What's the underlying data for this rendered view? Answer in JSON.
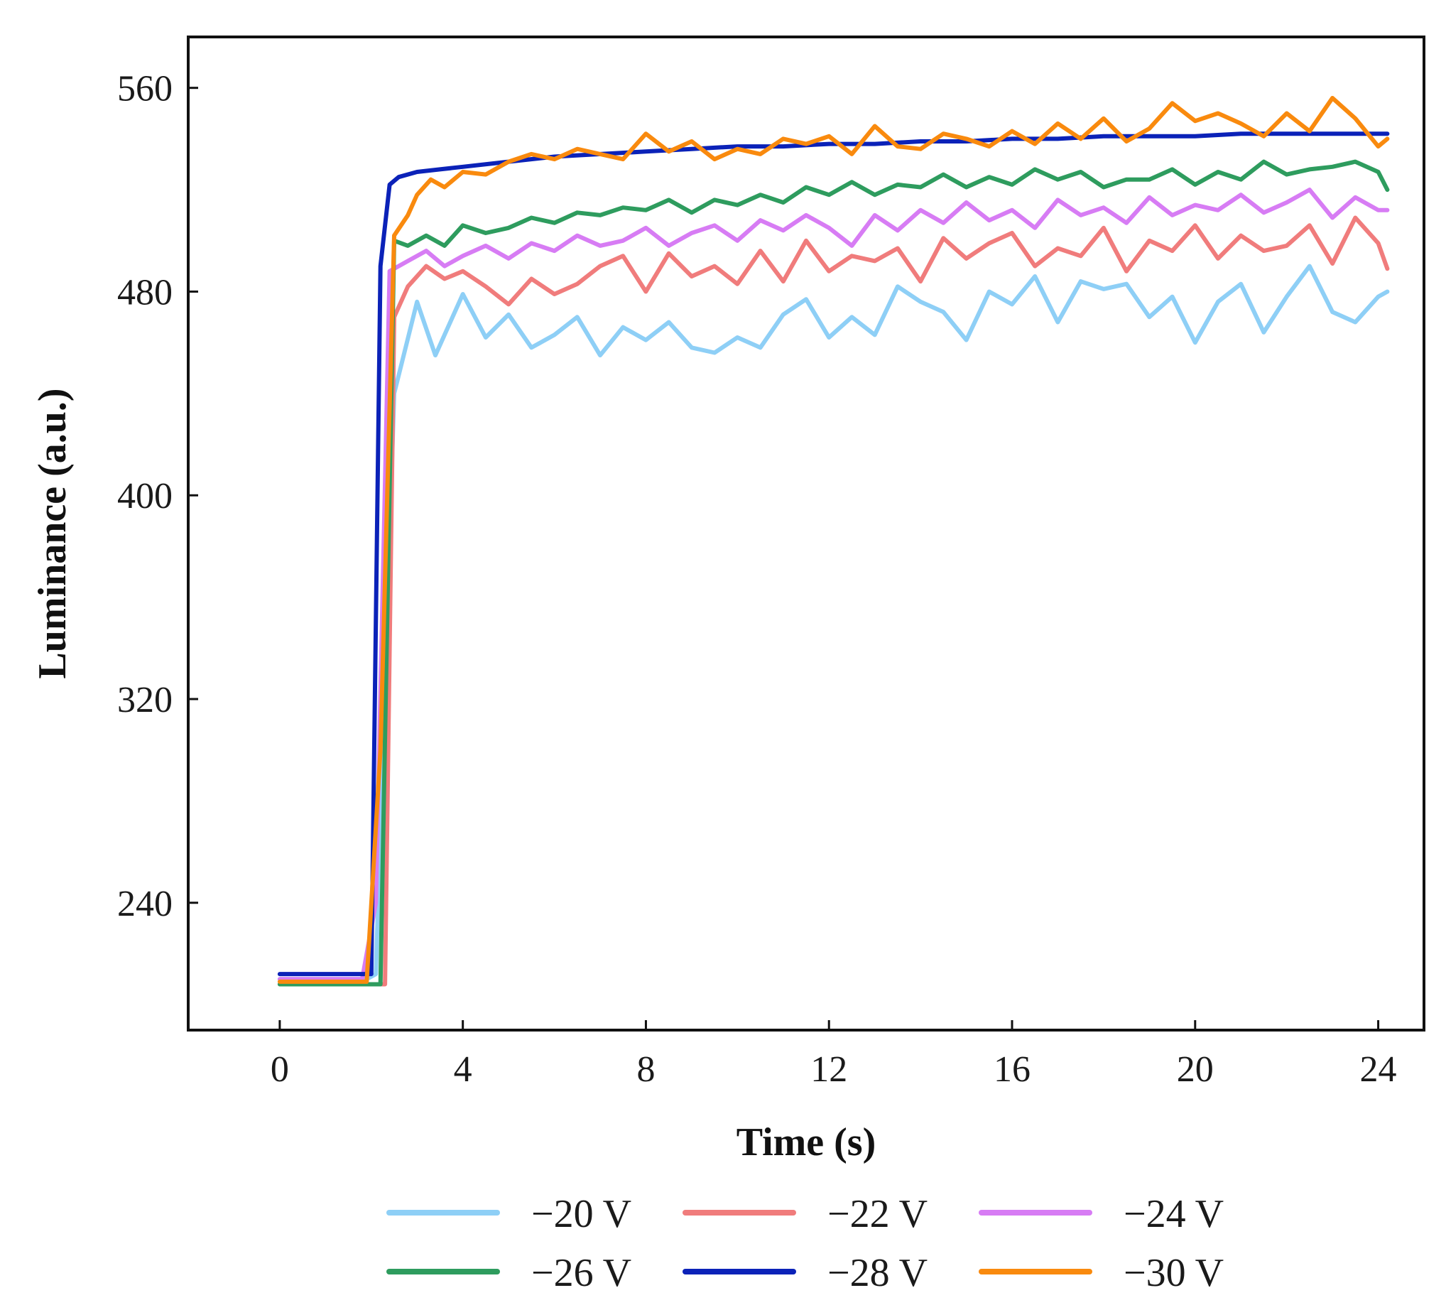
{
  "chart_data": {
    "type": "line",
    "title": "",
    "xlabel": "Time (s)",
    "ylabel": "Luminance (a.u.)",
    "xlim": [
      -2,
      25
    ],
    "ylim": [
      190,
      580
    ],
    "xticks": [
      0,
      4,
      8,
      12,
      16,
      20,
      24
    ],
    "xtick_labels": [
      "0",
      "4",
      "8",
      "12",
      "16",
      "20",
      "24"
    ],
    "yticks": [
      240,
      320,
      400,
      480,
      560
    ],
    "ytick_labels": [
      "240",
      "320",
      "400",
      "480",
      "560"
    ],
    "grid": false,
    "legend_position": "bottom",
    "series": [
      {
        "name": "−20 V",
        "color": "#8ecff6",
        "x": [
          0,
          1.9,
          2.1,
          2.5,
          3.0,
          3.4,
          4.0,
          4.5,
          5.0,
          5.5,
          6.0,
          6.5,
          7.0,
          7.5,
          8.0,
          8.5,
          9.0,
          9.5,
          10.0,
          10.5,
          11.0,
          11.5,
          12.0,
          12.5,
          13.0,
          13.5,
          14.0,
          14.5,
          15.0,
          15.5,
          16.0,
          16.5,
          17.0,
          17.5,
          18.0,
          18.5,
          19.0,
          19.5,
          20.0,
          20.5,
          21.0,
          21.5,
          22.0,
          22.5,
          23.0,
          23.5,
          24.0,
          24.2
        ],
        "values": [
          210,
          210,
          212,
          440,
          476,
          455,
          479,
          462,
          471,
          458,
          463,
          470,
          455,
          466,
          461,
          468,
          458,
          456,
          462,
          458,
          471,
          477,
          462,
          470,
          463,
          482,
          476,
          472,
          461,
          480,
          475,
          486,
          468,
          484,
          481,
          483,
          470,
          478,
          460,
          476,
          483,
          464,
          478,
          490,
          472,
          468,
          478,
          480
        ]
      },
      {
        "name": "−22 V",
        "color": "#f07c7c",
        "x": [
          0,
          2.3,
          2.5,
          2.8,
          3.2,
          3.6,
          4.0,
          4.5,
          5.0,
          5.5,
          6.0,
          6.5,
          7.0,
          7.5,
          8.0,
          8.5,
          9.0,
          9.5,
          10.0,
          10.5,
          11.0,
          11.5,
          12.0,
          12.5,
          13.0,
          13.5,
          14.0,
          14.5,
          15.0,
          15.5,
          16.0,
          16.5,
          17.0,
          17.5,
          18.0,
          18.5,
          19.0,
          19.5,
          20.0,
          20.5,
          21.0,
          21.5,
          22.0,
          22.5,
          23.0,
          23.5,
          24.0,
          24.2
        ],
        "values": [
          208,
          208,
          470,
          482,
          490,
          485,
          488,
          482,
          475,
          485,
          479,
          483,
          490,
          494,
          480,
          495,
          486,
          490,
          483,
          496,
          484,
          500,
          488,
          494,
          492,
          497,
          484,
          501,
          493,
          499,
          503,
          490,
          497,
          494,
          505,
          488,
          500,
          496,
          506,
          493,
          502,
          496,
          498,
          506,
          491,
          509,
          499,
          489
        ]
      },
      {
        "name": "−24 V",
        "color": "#d77cf4",
        "x": [
          0,
          1.8,
          2.1,
          2.4,
          2.8,
          3.2,
          3.6,
          4.0,
          4.5,
          5.0,
          5.5,
          6.0,
          6.5,
          7.0,
          7.5,
          8.0,
          8.5,
          9.0,
          9.5,
          10.0,
          10.5,
          11.0,
          11.5,
          12.0,
          12.5,
          13.0,
          13.5,
          14.0,
          14.5,
          15.0,
          15.5,
          16.0,
          16.5,
          17.0,
          17.5,
          18.0,
          18.5,
          19.0,
          19.5,
          20.0,
          20.5,
          21.0,
          21.5,
          22.0,
          22.5,
          23.0,
          23.5,
          24.0,
          24.2
        ],
        "values": [
          210,
          210,
          240,
          488,
          492,
          496,
          490,
          494,
          498,
          493,
          499,
          496,
          502,
          498,
          500,
          505,
          498,
          503,
          506,
          500,
          508,
          504,
          510,
          505,
          498,
          510,
          504,
          512,
          507,
          515,
          508,
          512,
          505,
          516,
          510,
          513,
          507,
          517,
          510,
          514,
          512,
          518,
          511,
          515,
          520,
          509,
          517,
          512,
          512
        ]
      },
      {
        "name": "−26 V",
        "color": "#2e9c5e",
        "x": [
          0,
          2.2,
          2.5,
          2.8,
          3.2,
          3.6,
          4.0,
          4.5,
          5.0,
          5.5,
          6.0,
          6.5,
          7.0,
          7.5,
          8.0,
          8.5,
          9.0,
          9.5,
          10.0,
          10.5,
          11.0,
          11.5,
          12.0,
          12.5,
          13.0,
          13.5,
          14.0,
          14.5,
          15.0,
          15.5,
          16.0,
          16.5,
          17.0,
          17.5,
          18.0,
          18.5,
          19.0,
          19.5,
          20.0,
          20.5,
          21.0,
          21.5,
          22.0,
          22.5,
          23.0,
          23.5,
          24.0,
          24.2
        ],
        "values": [
          208,
          208,
          500,
          498,
          502,
          498,
          506,
          503,
          505,
          509,
          507,
          511,
          510,
          513,
          512,
          516,
          511,
          516,
          514,
          518,
          515,
          521,
          518,
          523,
          518,
          522,
          521,
          526,
          521,
          525,
          522,
          528,
          524,
          527,
          521,
          524,
          524,
          528,
          522,
          527,
          524,
          531,
          526,
          528,
          529,
          531,
          527,
          520
        ]
      },
      {
        "name": "−28 V",
        "color": "#0b22b8",
        "x": [
          0,
          2.0,
          2.2,
          2.4,
          2.6,
          3.0,
          3.5,
          4.0,
          5.0,
          6.0,
          7.0,
          8.0,
          9.0,
          10.0,
          11.0,
          12.0,
          13.0,
          14.0,
          15.0,
          16.0,
          17.0,
          18.0,
          19.0,
          20.0,
          21.0,
          22.0,
          23.0,
          24.0,
          24.2
        ],
        "values": [
          212,
          212,
          490,
          522,
          525,
          527,
          528,
          529,
          531,
          533,
          534,
          535,
          536,
          537,
          537,
          538,
          538,
          539,
          539,
          540,
          540,
          541,
          541,
          541,
          542,
          542,
          542,
          542,
          542
        ]
      },
      {
        "name": "−30 V",
        "color": "#f98a0e",
        "x": [
          0,
          1.9,
          2.2,
          2.5,
          2.8,
          3.0,
          3.3,
          3.6,
          4.0,
          4.5,
          5.0,
          5.5,
          6.0,
          6.5,
          7.0,
          7.5,
          8.0,
          8.5,
          9.0,
          9.5,
          10.0,
          10.5,
          11.0,
          11.5,
          12.0,
          12.5,
          13.0,
          13.5,
          14.0,
          14.5,
          15.0,
          15.5,
          16.0,
          16.5,
          17.0,
          17.5,
          18.0,
          18.5,
          19.0,
          19.5,
          20.0,
          20.5,
          21.0,
          21.5,
          22.0,
          22.5,
          23.0,
          23.5,
          24.0,
          24.2
        ],
        "values": [
          209,
          209,
          300,
          502,
          510,
          518,
          524,
          521,
          527,
          526,
          531,
          534,
          532,
          536,
          534,
          532,
          542,
          535,
          539,
          532,
          536,
          534,
          540,
          538,
          541,
          534,
          545,
          537,
          536,
          542,
          540,
          537,
          543,
          538,
          546,
          540,
          548,
          539,
          544,
          554,
          547,
          550,
          546,
          541,
          550,
          543,
          556,
          548,
          537,
          540
        ]
      }
    ]
  }
}
